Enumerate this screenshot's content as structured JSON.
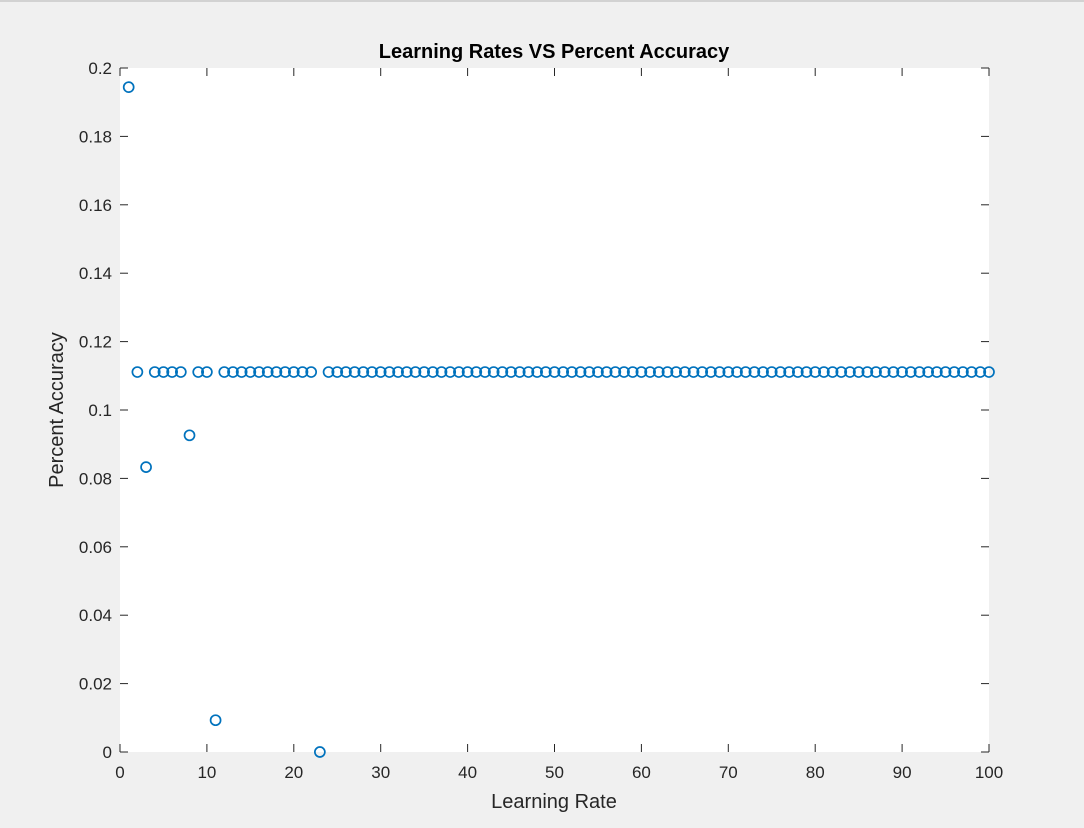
{
  "chart_data": {
    "type": "scatter",
    "title": "Learning Rates VS Percent Accuracy",
    "xlabel": "Learning Rate",
    "ylabel": "Percent Accuracy",
    "xlim": [
      0,
      100
    ],
    "ylim": [
      0,
      0.2
    ],
    "xticks": [
      0,
      10,
      20,
      30,
      40,
      50,
      60,
      70,
      80,
      90,
      100
    ],
    "xtick_labels": [
      "0",
      "10",
      "20",
      "30",
      "40",
      "50",
      "60",
      "70",
      "80",
      "90",
      "100"
    ],
    "yticks": [
      0,
      0.02,
      0.04,
      0.06,
      0.08,
      0.1,
      0.12,
      0.14,
      0.16,
      0.18,
      0.2
    ],
    "ytick_labels": [
      "0",
      "0.02",
      "0.04",
      "0.06",
      "0.08",
      "0.1",
      "0.12",
      "0.14",
      "0.16",
      "0.18",
      "0.2"
    ],
    "grid": false,
    "marker": "circle",
    "color": "#0072BD",
    "x": [
      1,
      2,
      3,
      4,
      5,
      6,
      7,
      8,
      9,
      10,
      11,
      12,
      13,
      14,
      15,
      16,
      17,
      18,
      19,
      20,
      21,
      22,
      23,
      24,
      25,
      26,
      27,
      28,
      29,
      30,
      31,
      32,
      33,
      34,
      35,
      36,
      37,
      38,
      39,
      40,
      41,
      42,
      43,
      44,
      45,
      46,
      47,
      48,
      49,
      50,
      51,
      52,
      53,
      54,
      55,
      56,
      57,
      58,
      59,
      60,
      61,
      62,
      63,
      64,
      65,
      66,
      67,
      68,
      69,
      70,
      71,
      72,
      73,
      74,
      75,
      76,
      77,
      78,
      79,
      80,
      81,
      82,
      83,
      84,
      85,
      86,
      87,
      88,
      89,
      90,
      91,
      92,
      93,
      94,
      95,
      96,
      97,
      98,
      99,
      100
    ],
    "y": [
      0.1944,
      0.1111,
      0.0833,
      0.1111,
      0.1111,
      0.1111,
      0.1111,
      0.0926,
      0.1111,
      0.1111,
      0.0093,
      0.1111,
      0.1111,
      0.1111,
      0.1111,
      0.1111,
      0.1111,
      0.1111,
      0.1111,
      0.1111,
      0.1111,
      0.1111,
      0,
      0.1111,
      0.1111,
      0.1111,
      0.1111,
      0.1111,
      0.1111,
      0.1111,
      0.1111,
      0.1111,
      0.1111,
      0.1111,
      0.1111,
      0.1111,
      0.1111,
      0.1111,
      0.1111,
      0.1111,
      0.1111,
      0.1111,
      0.1111,
      0.1111,
      0.1111,
      0.1111,
      0.1111,
      0.1111,
      0.1111,
      0.1111,
      0.1111,
      0.1111,
      0.1111,
      0.1111,
      0.1111,
      0.1111,
      0.1111,
      0.1111,
      0.1111,
      0.1111,
      0.1111,
      0.1111,
      0.1111,
      0.1111,
      0.1111,
      0.1111,
      0.1111,
      0.1111,
      0.1111,
      0.1111,
      0.1111,
      0.1111,
      0.1111,
      0.1111,
      0.1111,
      0.1111,
      0.1111,
      0.1111,
      0.1111,
      0.1111,
      0.1111,
      0.1111,
      0.1111,
      0.1111,
      0.1111,
      0.1111,
      0.1111,
      0.1111,
      0.1111,
      0.1111,
      0.1111,
      0.1111,
      0.1111,
      0.1111,
      0.1111,
      0.1111,
      0.1111,
      0.1111,
      0.1111,
      0.1111
    ]
  }
}
